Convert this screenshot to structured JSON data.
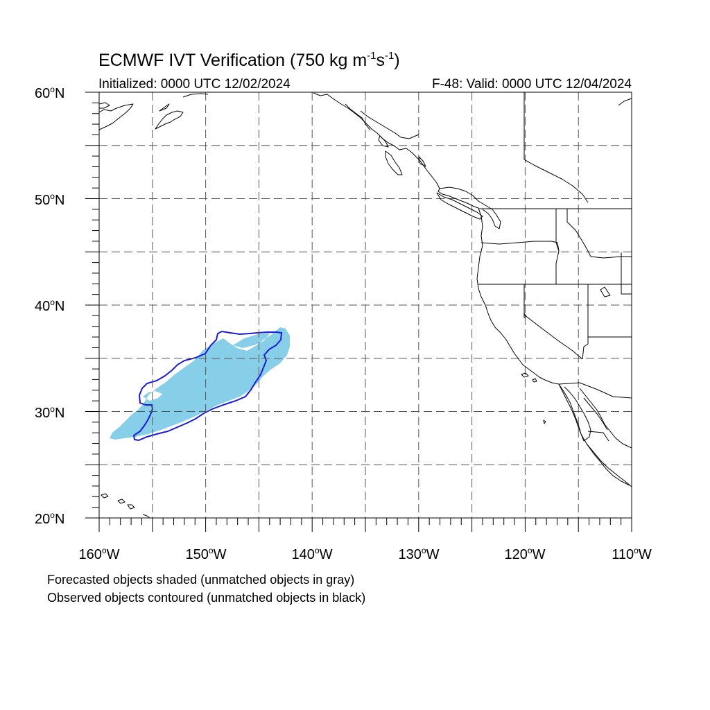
{
  "title": {
    "prefix": "ECMWF IVT Verification (750 kg m",
    "exp1": "-1",
    "middle": "s",
    "exp2": "-1",
    "suffix": ")"
  },
  "subtitle_left": "Initialized: 0000 UTC 12/02/2024",
  "subtitle_right": "F-48: Valid: 0000 UTC 12/04/2024",
  "degree_symbol": "o",
  "lat_labels": [
    {
      "num": "60",
      "hem": "N"
    },
    {
      "num": "50",
      "hem": "N"
    },
    {
      "num": "40",
      "hem": "N"
    },
    {
      "num": "30",
      "hem": "N"
    },
    {
      "num": "20",
      "hem": "N"
    }
  ],
  "lon_labels": [
    {
      "num": "160",
      "hem": "W"
    },
    {
      "num": "150",
      "hem": "W"
    },
    {
      "num": "140",
      "hem": "W"
    },
    {
      "num": "130",
      "hem": "W"
    },
    {
      "num": "120",
      "hem": "W"
    },
    {
      "num": "110",
      "hem": "W"
    }
  ],
  "notes": [
    "Forecasted objects shaded (unmatched objects in gray)",
    "Observed objects contoured (unmatched objects in black)"
  ],
  "map": {
    "lon_range": [
      -160,
      -110
    ],
    "lat_range": [
      20,
      60
    ],
    "grid_spacing_deg": 5,
    "forecast_fill_color": "#87CEE8",
    "observed_contour_color": "#1a1adc",
    "coastline_color": "#000000",
    "grid_line_style": "dashed"
  }
}
